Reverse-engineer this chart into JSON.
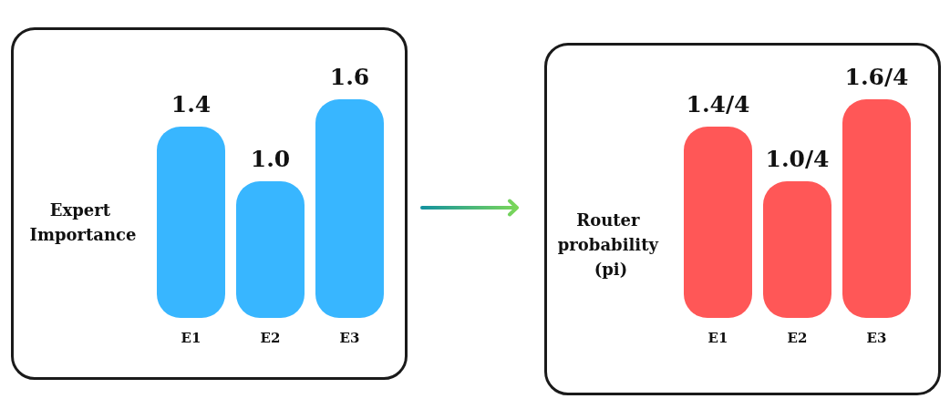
{
  "chart_data": [
    {
      "type": "bar",
      "ylabel": "Expert Importance",
      "categories": [
        "E1",
        "E2",
        "E3"
      ],
      "values": [
        1.4,
        1.0,
        1.6
      ],
      "value_labels": [
        "1.4",
        "1.0",
        "1.6"
      ],
      "color": "#38b6ff"
    },
    {
      "type": "bar",
      "ylabel": "Router probability (pi)",
      "categories": [
        "E1",
        "E2",
        "E3"
      ],
      "values": [
        0.35,
        0.25,
        0.4
      ],
      "value_labels": [
        "1.4/4",
        "1.0/4",
        "1.6/4"
      ],
      "color": "#ff5757"
    }
  ]
}
